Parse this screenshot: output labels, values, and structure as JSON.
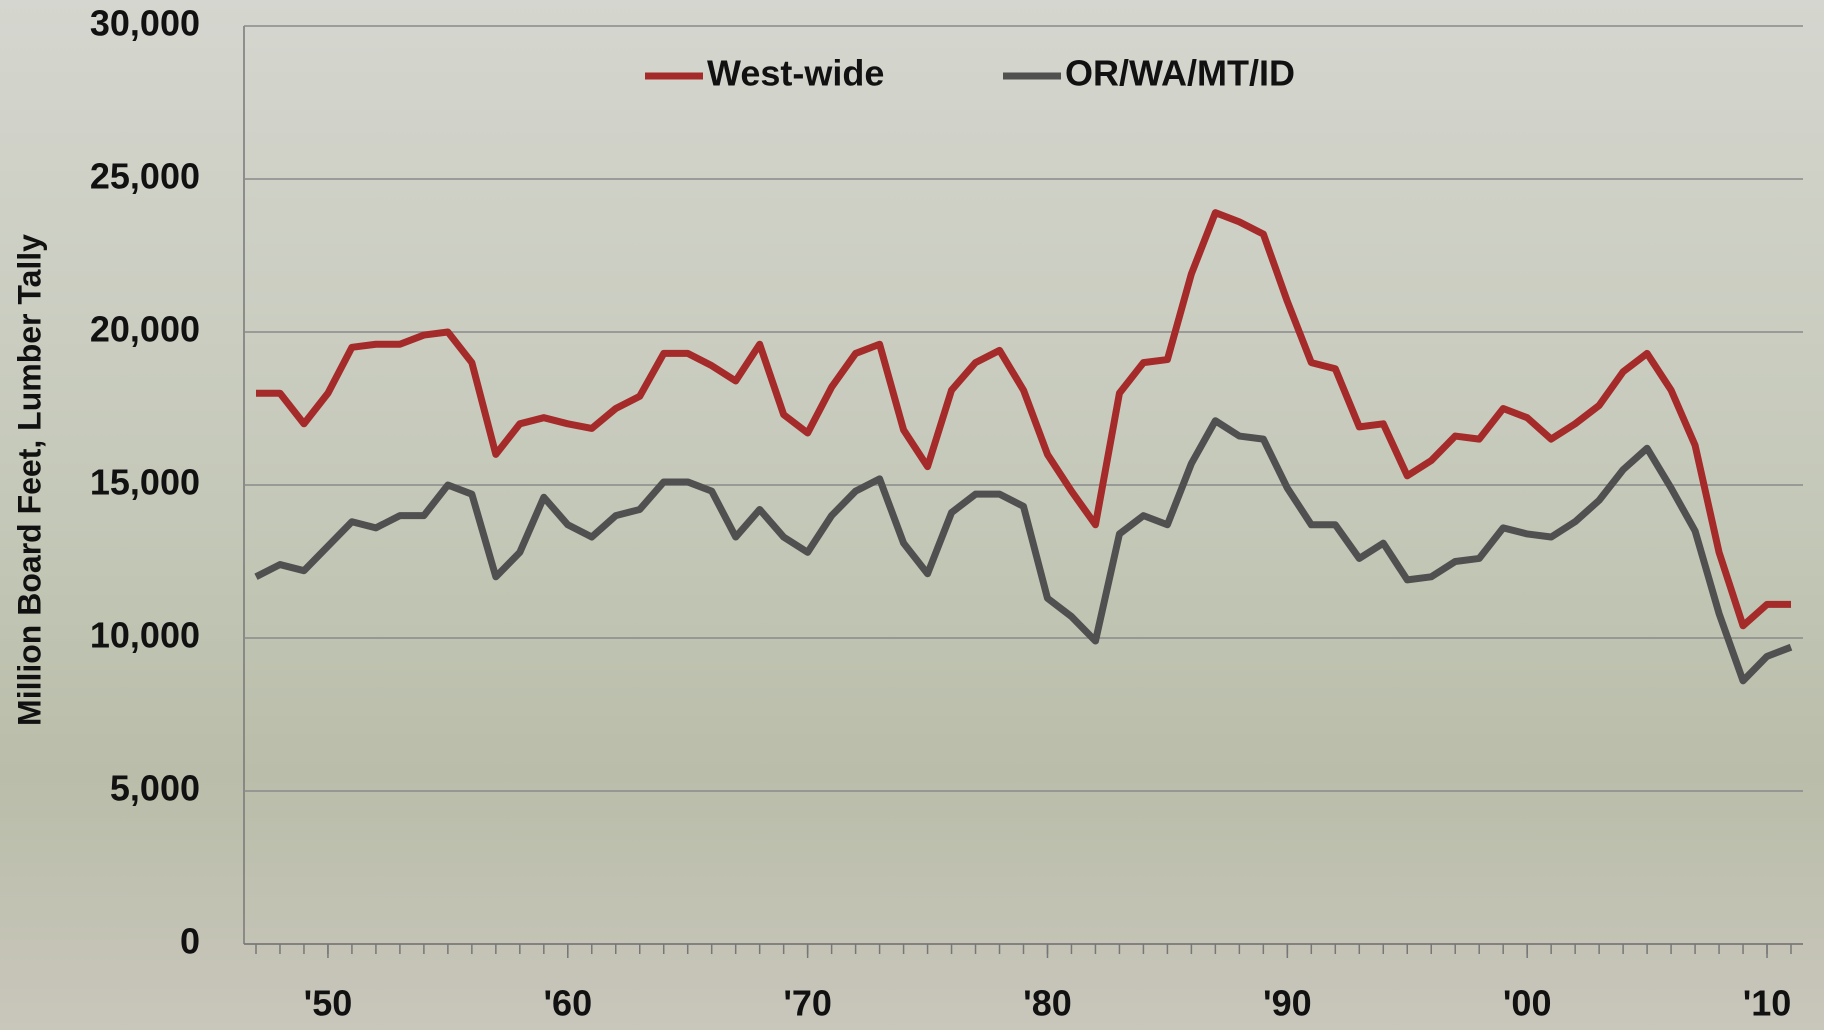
{
  "chart_data": {
    "type": "line",
    "y_label": "Million Board Feet, Lumber Tally",
    "x": [
      1947,
      1948,
      1949,
      1950,
      1951,
      1952,
      1953,
      1954,
      1955,
      1956,
      1957,
      1958,
      1959,
      1960,
      1961,
      1962,
      1963,
      1964,
      1965,
      1966,
      1967,
      1968,
      1969,
      1970,
      1971,
      1972,
      1973,
      1974,
      1975,
      1976,
      1977,
      1978,
      1979,
      1980,
      1981,
      1982,
      1983,
      1984,
      1985,
      1986,
      1987,
      1988,
      1989,
      1990,
      1991,
      1992,
      1993,
      1994,
      1995,
      1996,
      1997,
      1998,
      1999,
      2000,
      2001,
      2002,
      2003,
      2004,
      2005,
      2006,
      2007,
      2008,
      2009,
      2010,
      2011
    ],
    "series": [
      {
        "name": "West-wide",
        "color": "#a52a2a",
        "values": [
          18000,
          18000,
          17000,
          18000,
          19500,
          19600,
          19600,
          19900,
          20000,
          19000,
          16000,
          17000,
          17200,
          17000,
          16850,
          17500,
          17900,
          19300,
          19300,
          18900,
          18400,
          19600,
          17300,
          16700,
          18200,
          19300,
          19600,
          16800,
          15600,
          18100,
          19000,
          19400,
          18100,
          16000,
          14800,
          13700,
          18000,
          19000,
          19100,
          21900,
          23900,
          23600,
          23200,
          21000,
          19000,
          18800,
          16900,
          17000,
          15300,
          15800,
          16600,
          16500,
          17500,
          17200,
          16500,
          17000,
          17600,
          18700,
          19300,
          18100,
          16300,
          12800,
          10400,
          11100,
          11100
        ]
      },
      {
        "name": "OR/WA/MT/ID",
        "color": "#505050",
        "values": [
          12000,
          12400,
          12200,
          13000,
          13800,
          13600,
          14000,
          14000,
          15000,
          14700,
          12000,
          12800,
          14600,
          13700,
          13300,
          14000,
          14200,
          15100,
          15100,
          14800,
          13300,
          14200,
          13300,
          12800,
          14000,
          14800,
          15200,
          13100,
          12100,
          14100,
          14700,
          14700,
          14300,
          11300,
          10700,
          9900,
          13400,
          14000,
          13700,
          15700,
          17100,
          16600,
          16500,
          14900,
          13700,
          13700,
          12600,
          13100,
          11900,
          12000,
          12500,
          12600,
          13600,
          13400,
          13300,
          13800,
          14500,
          15500,
          16200,
          14900,
          13500,
          10800,
          8600,
          9400,
          9700
        ]
      }
    ],
    "xlim": [
      1946.5,
      2011.5
    ],
    "xticks": [
      {
        "value": 1950,
        "label": "'50"
      },
      {
        "value": 1960,
        "label": "'60"
      },
      {
        "value": 1970,
        "label": "'70"
      },
      {
        "value": 1980,
        "label": "'80"
      },
      {
        "value": 1990,
        "label": "'90"
      },
      {
        "value": 2000,
        "label": "'00"
      },
      {
        "value": 2010,
        "label": "'10"
      }
    ],
    "ylim": [
      0,
      30000
    ],
    "yticks": [
      0,
      {
        "value": 5000,
        "label": "5,000"
      },
      {
        "value": 10000,
        "label": "10,000"
      },
      {
        "value": 15000,
        "label": "15,000"
      },
      {
        "value": 20000,
        "label": "20,000"
      },
      {
        "value": 25000,
        "label": "25,000"
      },
      {
        "value": 30000,
        "label": "30,000"
      }
    ],
    "grid": true
  }
}
